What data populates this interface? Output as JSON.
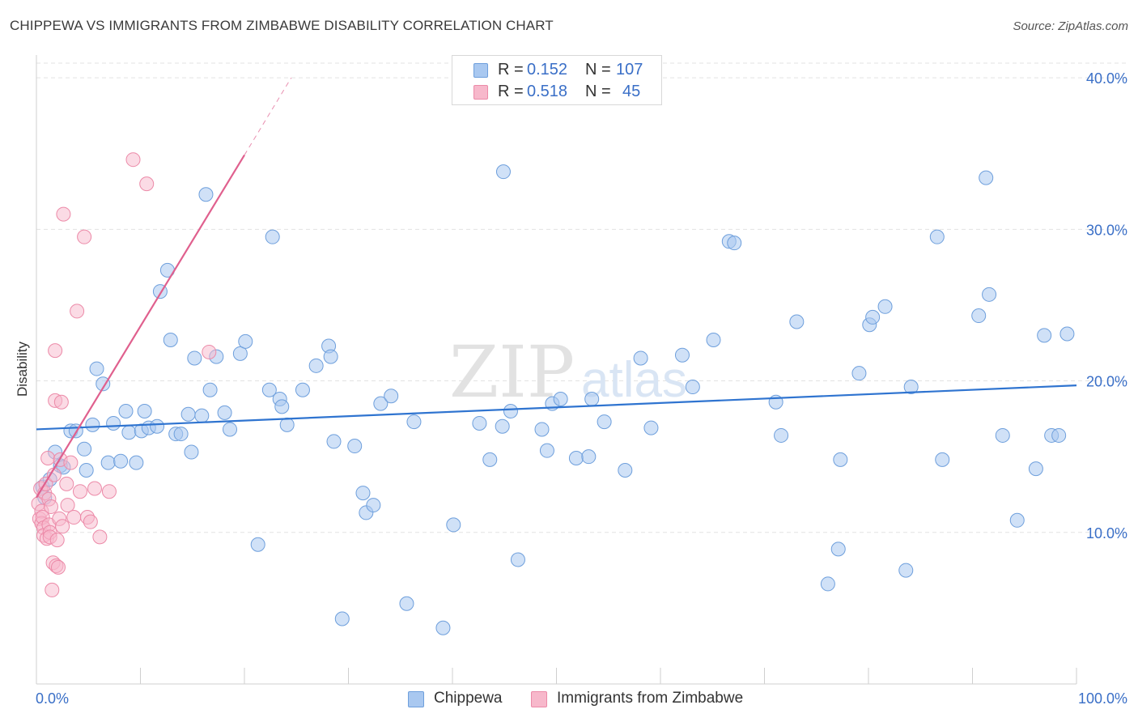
{
  "header": {
    "title": "CHIPPEWA VS IMMIGRANTS FROM ZIMBABWE DISABILITY CORRELATION CHART",
    "source": "Source: ZipAtlas.com"
  },
  "legend": {
    "rows": [
      {
        "r_label": "R =",
        "r_value": "0.152",
        "n_label": "N =",
        "n_value": "107"
      },
      {
        "r_label": "R =",
        "r_value": "0.518",
        "n_label": "N =",
        "n_value": "45"
      }
    ]
  },
  "bottom_legend": [
    "Chippewa",
    "Immigrants from Zimbabwe"
  ],
  "colors": {
    "chippewa_fill": "#a9c8f0",
    "chippewa_stroke": "#6e9fdc",
    "chippewa_line": "#2f74d0",
    "zimbabwe_fill": "#f7b8cb",
    "zimbabwe_stroke": "#ec8aa8",
    "zimbabwe_line": "#e0608e",
    "tick_label": "#3a6fc7",
    "grid": "#e3e3e3"
  },
  "watermark": {
    "zip": "ZIP",
    "atlas": "atlas"
  },
  "chart_data": {
    "type": "scatter",
    "title": "CHIPPEWA VS IMMIGRANTS FROM ZIMBABWE DISABILITY CORRELATION CHART",
    "xlabel": "",
    "ylabel": "Disability",
    "xlim": [
      0,
      100
    ],
    "ylim": [
      0,
      41.5
    ],
    "x_tick_labels": [
      "0.0%",
      "100.0%"
    ],
    "y_ticks": [
      10,
      20,
      30,
      40
    ],
    "y_tick_labels": [
      "10.0%",
      "20.0%",
      "30.0%",
      "40.0%"
    ],
    "grid": true,
    "series": [
      {
        "name": "Chippewa",
        "R": 0.152,
        "N": 107,
        "trend": {
          "x0": 0,
          "y0": 16.8,
          "x1": 100,
          "y1": 19.7
        },
        "points": [
          [
            0.6,
            13.0
          ],
          [
            0.8,
            12.3
          ],
          [
            1.3,
            13.5
          ],
          [
            1.8,
            15.3
          ],
          [
            2.3,
            14.4
          ],
          [
            2.6,
            14.3
          ],
          [
            3.3,
            16.7
          ],
          [
            3.8,
            16.7
          ],
          [
            4.6,
            15.5
          ],
          [
            4.8,
            14.1
          ],
          [
            5.4,
            17.1
          ],
          [
            5.8,
            20.8
          ],
          [
            6.4,
            19.8
          ],
          [
            6.9,
            14.6
          ],
          [
            7.4,
            17.2
          ],
          [
            8.1,
            14.7
          ],
          [
            8.6,
            18.0
          ],
          [
            8.9,
            16.6
          ],
          [
            9.6,
            14.6
          ],
          [
            10.1,
            16.7
          ],
          [
            10.4,
            18.0
          ],
          [
            10.8,
            16.9
          ],
          [
            11.6,
            17.0
          ],
          [
            11.9,
            25.9
          ],
          [
            12.6,
            27.3
          ],
          [
            12.9,
            22.7
          ],
          [
            13.4,
            16.5
          ],
          [
            13.9,
            16.5
          ],
          [
            14.6,
            17.8
          ],
          [
            14.9,
            15.3
          ],
          [
            15.2,
            21.5
          ],
          [
            15.9,
            17.7
          ],
          [
            16.3,
            32.3
          ],
          [
            16.7,
            19.4
          ],
          [
            17.3,
            21.6
          ],
          [
            18.1,
            17.9
          ],
          [
            18.6,
            16.8
          ],
          [
            19.6,
            21.8
          ],
          [
            20.1,
            22.6
          ],
          [
            21.3,
            9.2
          ],
          [
            22.4,
            19.4
          ],
          [
            22.7,
            29.5
          ],
          [
            23.4,
            18.8
          ],
          [
            23.6,
            18.3
          ],
          [
            24.1,
            17.1
          ],
          [
            25.6,
            19.4
          ],
          [
            26.9,
            21.0
          ],
          [
            28.1,
            22.3
          ],
          [
            28.3,
            21.6
          ],
          [
            28.6,
            16.0
          ],
          [
            29.4,
            4.3
          ],
          [
            30.6,
            15.7
          ],
          [
            31.4,
            12.6
          ],
          [
            31.7,
            11.3
          ],
          [
            32.4,
            11.8
          ],
          [
            33.1,
            18.5
          ],
          [
            34.1,
            19.0
          ],
          [
            35.6,
            5.3
          ],
          [
            36.3,
            17.3
          ],
          [
            39.1,
            3.7
          ],
          [
            40.1,
            10.5
          ],
          [
            42.6,
            17.2
          ],
          [
            43.6,
            14.8
          ],
          [
            44.8,
            17.0
          ],
          [
            44.9,
            33.8
          ],
          [
            45.6,
            18.0
          ],
          [
            46.3,
            8.2
          ],
          [
            48.6,
            16.8
          ],
          [
            49.1,
            15.4
          ],
          [
            49.6,
            18.5
          ],
          [
            50.4,
            18.8
          ],
          [
            51.9,
            14.9
          ],
          [
            53.1,
            15.0
          ],
          [
            53.4,
            18.8
          ],
          [
            54.6,
            17.3
          ],
          [
            56.6,
            14.1
          ],
          [
            58.1,
            21.5
          ],
          [
            59.1,
            16.9
          ],
          [
            62.1,
            21.7
          ],
          [
            63.1,
            19.6
          ],
          [
            65.1,
            22.7
          ],
          [
            66.6,
            29.2
          ],
          [
            67.1,
            29.1
          ],
          [
            71.1,
            18.6
          ],
          [
            71.6,
            16.4
          ],
          [
            73.1,
            23.9
          ],
          [
            76.1,
            6.6
          ],
          [
            77.1,
            8.9
          ],
          [
            77.3,
            14.8
          ],
          [
            79.1,
            20.5
          ],
          [
            80.1,
            23.7
          ],
          [
            80.4,
            24.2
          ],
          [
            81.6,
            24.9
          ],
          [
            83.6,
            7.5
          ],
          [
            84.1,
            19.6
          ],
          [
            86.6,
            29.5
          ],
          [
            87.1,
            14.8
          ],
          [
            90.6,
            24.3
          ],
          [
            91.3,
            33.4
          ],
          [
            91.6,
            25.7
          ],
          [
            92.9,
            16.4
          ],
          [
            94.3,
            10.8
          ],
          [
            96.1,
            14.2
          ],
          [
            96.9,
            23.0
          ],
          [
            97.6,
            16.4
          ],
          [
            98.3,
            16.4
          ],
          [
            99.1,
            23.1
          ]
        ]
      },
      {
        "name": "Immigrants from Zimbabwe",
        "R": 0.518,
        "N": 45,
        "trend": {
          "x0": 0,
          "y0": 12.3,
          "x1": 20,
          "y1": 34.9,
          "dashed_to": {
            "x": 24.5,
            "y": 40.0
          }
        },
        "points": [
          [
            0.2,
            11.9
          ],
          [
            0.3,
            10.9
          ],
          [
            0.4,
            12.9
          ],
          [
            0.5,
            11.4
          ],
          [
            0.5,
            10.6
          ],
          [
            0.6,
            11.0
          ],
          [
            0.7,
            10.3
          ],
          [
            0.7,
            9.8
          ],
          [
            0.8,
            12.6
          ],
          [
            0.9,
            13.2
          ],
          [
            1.0,
            9.6
          ],
          [
            1.1,
            14.9
          ],
          [
            1.2,
            12.2
          ],
          [
            1.2,
            10.5
          ],
          [
            1.3,
            10.0
          ],
          [
            1.3,
            9.7
          ],
          [
            1.4,
            11.7
          ],
          [
            1.5,
            6.2
          ],
          [
            1.6,
            8.0
          ],
          [
            1.7,
            13.8
          ],
          [
            1.8,
            22.0
          ],
          [
            1.8,
            18.7
          ],
          [
            1.9,
            7.8
          ],
          [
            2.0,
            9.5
          ],
          [
            2.1,
            7.7
          ],
          [
            2.2,
            10.9
          ],
          [
            2.3,
            14.8
          ],
          [
            2.4,
            18.6
          ],
          [
            2.5,
            10.4
          ],
          [
            2.6,
            31.0
          ],
          [
            2.9,
            13.2
          ],
          [
            3.0,
            11.8
          ],
          [
            3.3,
            14.6
          ],
          [
            3.6,
            11.0
          ],
          [
            3.9,
            24.6
          ],
          [
            4.2,
            12.7
          ],
          [
            4.6,
            29.5
          ],
          [
            4.9,
            11.0
          ],
          [
            5.2,
            10.7
          ],
          [
            5.6,
            12.9
          ],
          [
            6.1,
            9.7
          ],
          [
            7.0,
            12.7
          ],
          [
            9.3,
            34.6
          ],
          [
            10.6,
            33.0
          ],
          [
            16.6,
            21.9
          ]
        ]
      }
    ]
  }
}
